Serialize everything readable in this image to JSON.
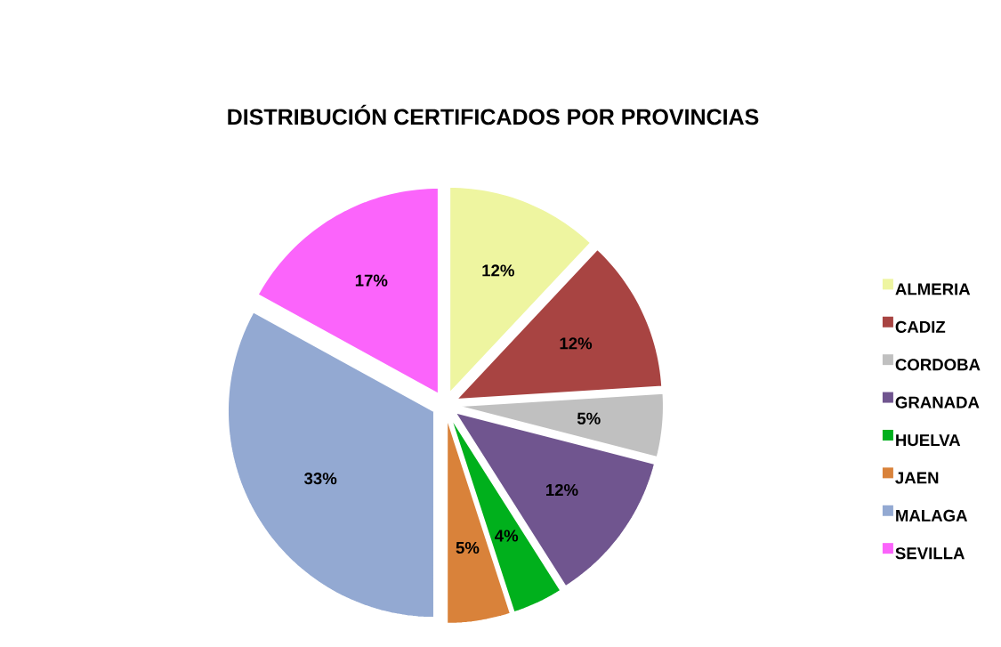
{
  "chart_data": {
    "type": "pie",
    "title": "DISTRIBUCIÓN CERTIFICADOS POR PROVINCIAS",
    "categories": [
      "ALMERIA",
      "CADIZ",
      "CORDOBA",
      "GRANADA",
      "HUELVA",
      "JAEN",
      "MALAGA",
      "SEVILLA"
    ],
    "values": [
      12,
      12,
      5,
      12,
      4,
      5,
      33,
      17
    ],
    "colors": [
      "#eef5a0",
      "#a84442",
      "#c0c0c0",
      "#70558f",
      "#00b01c",
      "#d9823a",
      "#93a9d2",
      "#fb64fb"
    ],
    "value_labels": [
      "12%",
      "12%",
      "5%",
      "12%",
      "4%",
      "5%",
      "33%",
      "17%"
    ],
    "legend": "right"
  }
}
